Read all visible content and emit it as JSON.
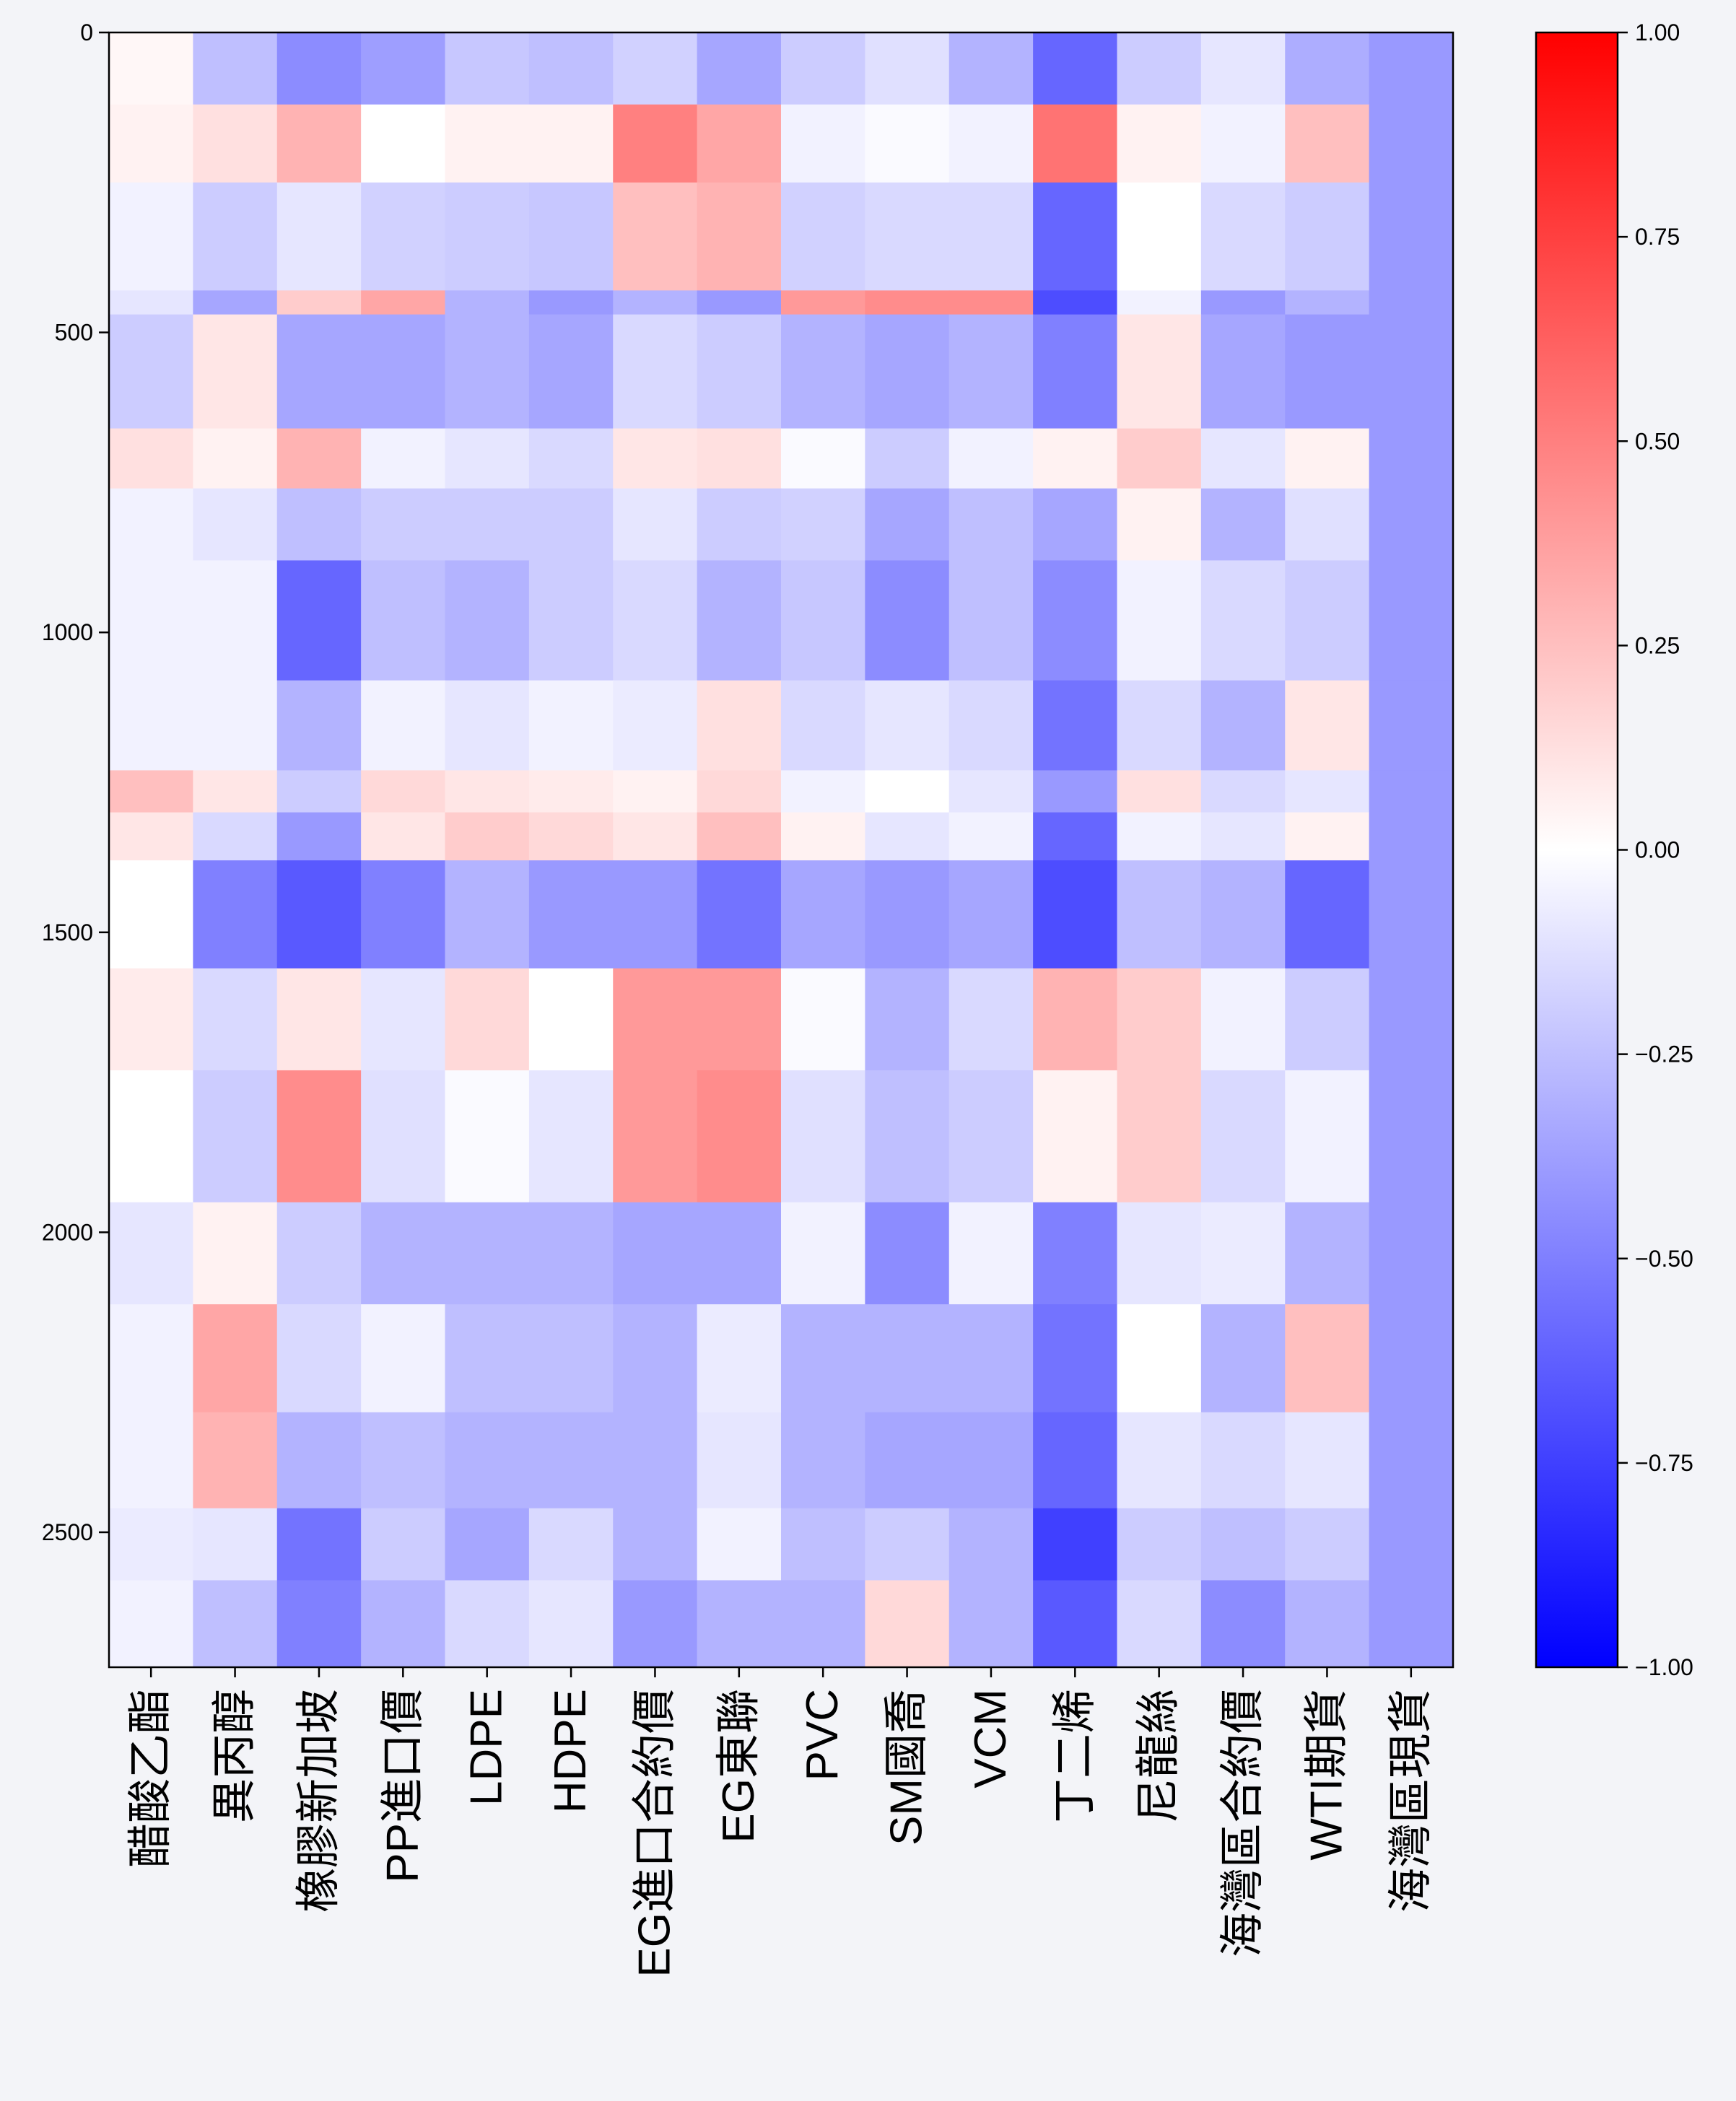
{
  "chart_data": {
    "type": "heatmap",
    "title": "",
    "xlabel": "",
    "ylabel": "",
    "colormap": "bwr",
    "colors": {
      "low": "#0000ff",
      "mid": "#ffffff",
      "high": "#ff0000",
      "background": "#f3f4f8"
    },
    "columns": [
      "醋酸乙酯",
      "異丙醇",
      "橡膠新加坡",
      "PP進口價",
      "LDPE",
      "HDPE",
      "EG進口合約價",
      "EG東聯",
      "PVC",
      "SM國喬",
      "VCM",
      "丁二烯",
      "尼龍絲",
      "海灣區合約價",
      "WTI期貨",
      "海灣區現貨"
    ],
    "row_count": 2725,
    "y_range": [
      0,
      2725
    ],
    "y_ticks": [
      0,
      500,
      1000,
      1500,
      2000,
      2500
    ],
    "y_tick_labels": [
      "0",
      "500",
      "1000",
      "1500",
      "2000",
      "2500"
    ],
    "colorbar": {
      "range": [
        -1.0,
        1.0
      ],
      "ticks": [
        1.0,
        0.75,
        0.5,
        0.25,
        0.0,
        -0.25,
        -0.5,
        -0.75,
        -1.0
      ],
      "tick_labels": [
        "1.00",
        "0.75",
        "0.50",
        "0.25",
        "0.00",
        "−0.25",
        "−0.50",
        "−0.75",
        "−1.00"
      ]
    },
    "segments": [
      {
        "y_start": 0,
        "y_end": 120,
        "values": [
          0.03,
          -0.25,
          -0.45,
          -0.38,
          -0.22,
          -0.25,
          -0.18,
          -0.35,
          -0.2,
          -0.12,
          -0.3,
          -0.6,
          -0.2,
          -0.1,
          -0.32,
          -0.4
        ]
      },
      {
        "y_start": 120,
        "y_end": 250,
        "values": [
          0.05,
          0.12,
          0.3,
          0.0,
          0.05,
          0.05,
          0.5,
          0.35,
          -0.05,
          -0.02,
          -0.05,
          0.55,
          0.05,
          -0.05,
          0.25,
          -0.4
        ]
      },
      {
        "y_start": 250,
        "y_end": 430,
        "values": [
          -0.05,
          -0.2,
          -0.1,
          -0.18,
          -0.2,
          -0.22,
          0.25,
          0.3,
          -0.18,
          -0.15,
          -0.15,
          -0.6,
          0.0,
          -0.15,
          -0.2,
          -0.4
        ]
      },
      {
        "y_start": 430,
        "y_end": 470,
        "values": [
          -0.1,
          -0.35,
          0.2,
          0.35,
          -0.3,
          -0.4,
          -0.3,
          -0.4,
          0.4,
          0.45,
          0.45,
          -0.7,
          -0.05,
          -0.4,
          -0.3,
          -0.4
        ]
      },
      {
        "y_start": 470,
        "y_end": 660,
        "values": [
          -0.2,
          0.1,
          -0.35,
          -0.35,
          -0.3,
          -0.35,
          -0.15,
          -0.2,
          -0.3,
          -0.35,
          -0.3,
          -0.5,
          0.1,
          -0.35,
          -0.4,
          -0.4
        ]
      },
      {
        "y_start": 660,
        "y_end": 760,
        "values": [
          0.12,
          0.05,
          0.3,
          -0.05,
          -0.1,
          -0.15,
          0.1,
          0.12,
          -0.02,
          -0.2,
          -0.05,
          0.05,
          0.2,
          -0.1,
          0.05,
          -0.4
        ]
      },
      {
        "y_start": 760,
        "y_end": 880,
        "values": [
          -0.05,
          -0.1,
          -0.25,
          -0.2,
          -0.2,
          -0.2,
          -0.1,
          -0.2,
          -0.18,
          -0.35,
          -0.25,
          -0.35,
          0.05,
          -0.3,
          -0.12,
          -0.4
        ]
      },
      {
        "y_start": 880,
        "y_end": 1080,
        "values": [
          -0.05,
          -0.05,
          -0.6,
          -0.25,
          -0.3,
          -0.2,
          -0.15,
          -0.3,
          -0.22,
          -0.45,
          -0.25,
          -0.45,
          -0.05,
          -0.15,
          -0.2,
          -0.4
        ]
      },
      {
        "y_start": 1080,
        "y_end": 1230,
        "values": [
          -0.05,
          -0.05,
          -0.3,
          -0.05,
          -0.1,
          -0.05,
          -0.08,
          0.12,
          -0.15,
          -0.1,
          -0.15,
          -0.55,
          -0.15,
          -0.3,
          0.1,
          -0.4
        ]
      },
      {
        "y_start": 1230,
        "y_end": 1300,
        "values": [
          0.25,
          0.1,
          -0.2,
          0.15,
          0.1,
          0.08,
          0.05,
          0.15,
          -0.05,
          0.0,
          -0.1,
          -0.4,
          0.12,
          -0.15,
          -0.1,
          -0.4
        ]
      },
      {
        "y_start": 1300,
        "y_end": 1380,
        "values": [
          0.1,
          -0.15,
          -0.4,
          0.1,
          0.2,
          0.15,
          0.1,
          0.25,
          0.05,
          -0.1,
          -0.05,
          -0.6,
          -0.05,
          -0.1,
          0.05,
          -0.4
        ]
      },
      {
        "y_start": 1380,
        "y_end": 1560,
        "values": [
          0.0,
          -0.5,
          -0.65,
          -0.5,
          -0.3,
          -0.4,
          -0.4,
          -0.55,
          -0.35,
          -0.4,
          -0.35,
          -0.7,
          -0.25,
          -0.3,
          -0.6,
          -0.4
        ]
      },
      {
        "y_start": 1560,
        "y_end": 1730,
        "values": [
          0.08,
          -0.15,
          0.1,
          -0.1,
          0.15,
          0.0,
          0.4,
          0.4,
          -0.02,
          -0.3,
          -0.15,
          0.3,
          0.2,
          -0.05,
          -0.2,
          -0.4
        ]
      },
      {
        "y_start": 1730,
        "y_end": 1950,
        "values": [
          0.0,
          -0.2,
          0.45,
          -0.12,
          -0.02,
          -0.1,
          0.4,
          0.45,
          -0.12,
          -0.25,
          -0.2,
          0.05,
          0.2,
          -0.15,
          -0.05,
          -0.4
        ]
      },
      {
        "y_start": 1950,
        "y_end": 2120,
        "values": [
          -0.1,
          0.05,
          -0.2,
          -0.3,
          -0.3,
          -0.3,
          -0.35,
          -0.35,
          -0.05,
          -0.45,
          -0.05,
          -0.5,
          -0.1,
          -0.08,
          -0.3,
          -0.4
        ]
      },
      {
        "y_start": 2120,
        "y_end": 2300,
        "values": [
          -0.05,
          0.35,
          -0.15,
          -0.05,
          -0.25,
          -0.25,
          -0.3,
          -0.08,
          -0.3,
          -0.3,
          -0.3,
          -0.55,
          0.0,
          -0.3,
          0.25,
          -0.4
        ]
      },
      {
        "y_start": 2300,
        "y_end": 2460,
        "values": [
          -0.05,
          0.3,
          -0.3,
          -0.25,
          -0.3,
          -0.3,
          -0.3,
          -0.1,
          -0.3,
          -0.35,
          -0.35,
          -0.6,
          -0.1,
          -0.15,
          -0.1,
          -0.4
        ]
      },
      {
        "y_start": 2460,
        "y_end": 2580,
        "values": [
          -0.08,
          -0.1,
          -0.55,
          -0.2,
          -0.35,
          -0.15,
          -0.3,
          -0.05,
          -0.25,
          -0.2,
          -0.3,
          -0.75,
          -0.2,
          -0.25,
          -0.2,
          -0.4
        ]
      },
      {
        "y_start": 2580,
        "y_end": 2725,
        "values": [
          -0.05,
          -0.25,
          -0.5,
          -0.3,
          -0.15,
          -0.1,
          -0.4,
          -0.3,
          -0.3,
          0.15,
          -0.3,
          -0.65,
          -0.15,
          -0.45,
          -0.3,
          -0.4
        ]
      }
    ]
  }
}
